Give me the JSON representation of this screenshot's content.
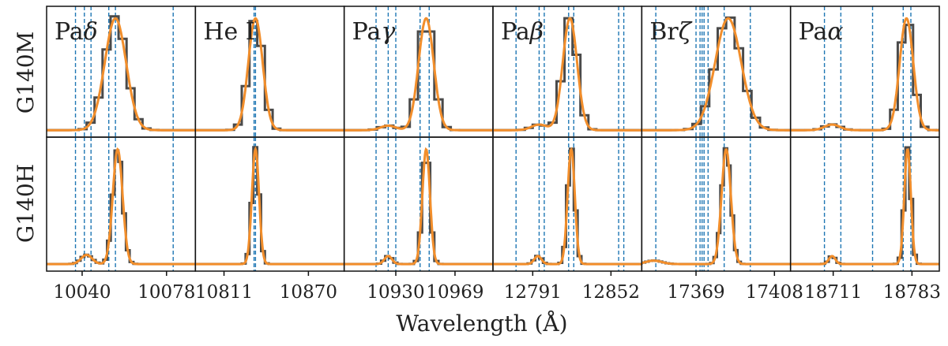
{
  "figure": {
    "xlabel": "Wavelength (Å)",
    "row_labels": [
      "G140M",
      "G140H"
    ]
  },
  "colors": {
    "data_step": "#4a4a4a",
    "model": "#f28e2b",
    "vline": "#1f77b4",
    "frame": "#111111"
  },
  "chart_data": {
    "type": "line",
    "layout": "2 rows x 6 columns of small multiples, shared y within each row",
    "y_range": [
      0,
      1.05
    ],
    "panels": [
      {
        "line": "Paδ",
        "label_main": "Pa",
        "label_greek": "δ",
        "x_range": [
          10024,
          10091
        ],
        "ticks": [
          10040,
          10078
        ],
        "tick_labels": [
          "10040",
          "10078"
        ],
        "vlines": [
          10037,
          10041,
          10044,
          10052,
          10055,
          10081
        ],
        "lines": {
          "G140M": {
            "center": 10055,
            "amp": 1.0,
            "width": 4.8,
            "secondary": [],
            "step": 3.6
          },
          "G140H": {
            "center": 10056,
            "amp": 1.0,
            "width": 2.2,
            "secondary": [
              [
                10042,
                0.08,
                2.5
              ]
            ],
            "step": 1.7
          }
        }
      },
      {
        "line": "He I",
        "label_main": "He I",
        "label_greek": "",
        "x_range": [
          10791,
          10895
        ],
        "ticks": [
          10811,
          10870
        ],
        "tick_labels": [
          "10811",
          "10870"
        ],
        "vlines": [
          10832,
          10833
        ],
        "lines": {
          "G140M": {
            "center": 10833,
            "amp": 1.0,
            "width": 5.0,
            "secondary": [],
            "step": 5.4
          },
          "G140H": {
            "center": 10833,
            "amp": 1.0,
            "width": 2.5,
            "secondary": [],
            "step": 2.7
          }
        }
      },
      {
        "line": "Paγ",
        "label_main": "Pa",
        "label_greek": "γ",
        "x_range": [
          10896,
          10994
        ],
        "ticks": [
          10930,
          10969
        ],
        "tick_labels": [
          "10930",
          "10969"
        ],
        "vlines": [
          10917,
          10925,
          10930,
          10946,
          10952
        ],
        "lines": {
          "G140M": {
            "center": 10950,
            "amp": 1.0,
            "width": 5.0,
            "secondary": [
              [
                10925,
                0.04,
                5
              ]
            ],
            "step": 5.4
          },
          "G140H": {
            "center": 10950,
            "amp": 1.0,
            "width": 2.5,
            "secondary": [
              [
                10925,
                0.07,
                2.5
              ]
            ],
            "step": 2.7
          }
        }
      },
      {
        "line": "Paβ",
        "label_main": "Pa",
        "label_greek": "β",
        "x_range": [
          12760,
          12876
        ],
        "ticks": [
          12791,
          12852
        ],
        "tick_labels": [
          "12791",
          "12852"
        ],
        "vlines": [
          12778,
          12796,
          12800,
          12819,
          12823,
          12858,
          12862
        ],
        "lines": {
          "G140M": {
            "center": 12820,
            "amp": 1.0,
            "width": 5.6,
            "secondary": [
              [
                12796,
                0.05,
                6
              ]
            ],
            "step": 6.2
          },
          "G140H": {
            "center": 12821,
            "amp": 1.0,
            "width": 2.8,
            "secondary": [
              [
                12795,
                0.07,
                2.8
              ]
            ],
            "step": 3.0
          }
        }
      },
      {
        "line": "Brζ",
        "label_main": "Br",
        "label_greek": "ζ",
        "x_range": [
          17342,
          17416
        ],
        "ticks": [
          17369,
          17408
        ],
        "tick_labels": [
          "17369",
          "17408"
        ],
        "vlines": [
          17349,
          17369,
          17371,
          17372,
          17373,
          17375,
          17383,
          17396
        ],
        "lines": {
          "G140M": {
            "center": 17385,
            "amp": 1.0,
            "width": 6.5,
            "secondary": [],
            "step": 4.2
          },
          "G140H": {
            "center": 17384,
            "amp": 1.0,
            "width": 2.3,
            "secondary": [
              [
                17348,
                0.03,
                4
              ]
            ],
            "step": 1.7
          }
        }
      },
      {
        "line": "Paα",
        "label_main": "Pa",
        "label_greek": "α",
        "x_range": [
          18672,
          18808
        ],
        "ticks": [
          18711,
          18783
        ],
        "tick_labels": [
          "18711",
          "18783"
        ],
        "vlines": [
          18703,
          18718,
          18747,
          18775,
          18782
        ],
        "lines": {
          "G140M": {
            "center": 18778,
            "amp": 1.0,
            "width": 6.2,
            "secondary": [
              [
                18710,
                0.05,
                7
              ]
            ],
            "step": 7.0
          },
          "G140H": {
            "center": 18779,
            "amp": 1.0,
            "width": 3.0,
            "secondary": [
              [
                18710,
                0.07,
                3
              ]
            ],
            "step": 3.5
          }
        }
      }
    ]
  }
}
